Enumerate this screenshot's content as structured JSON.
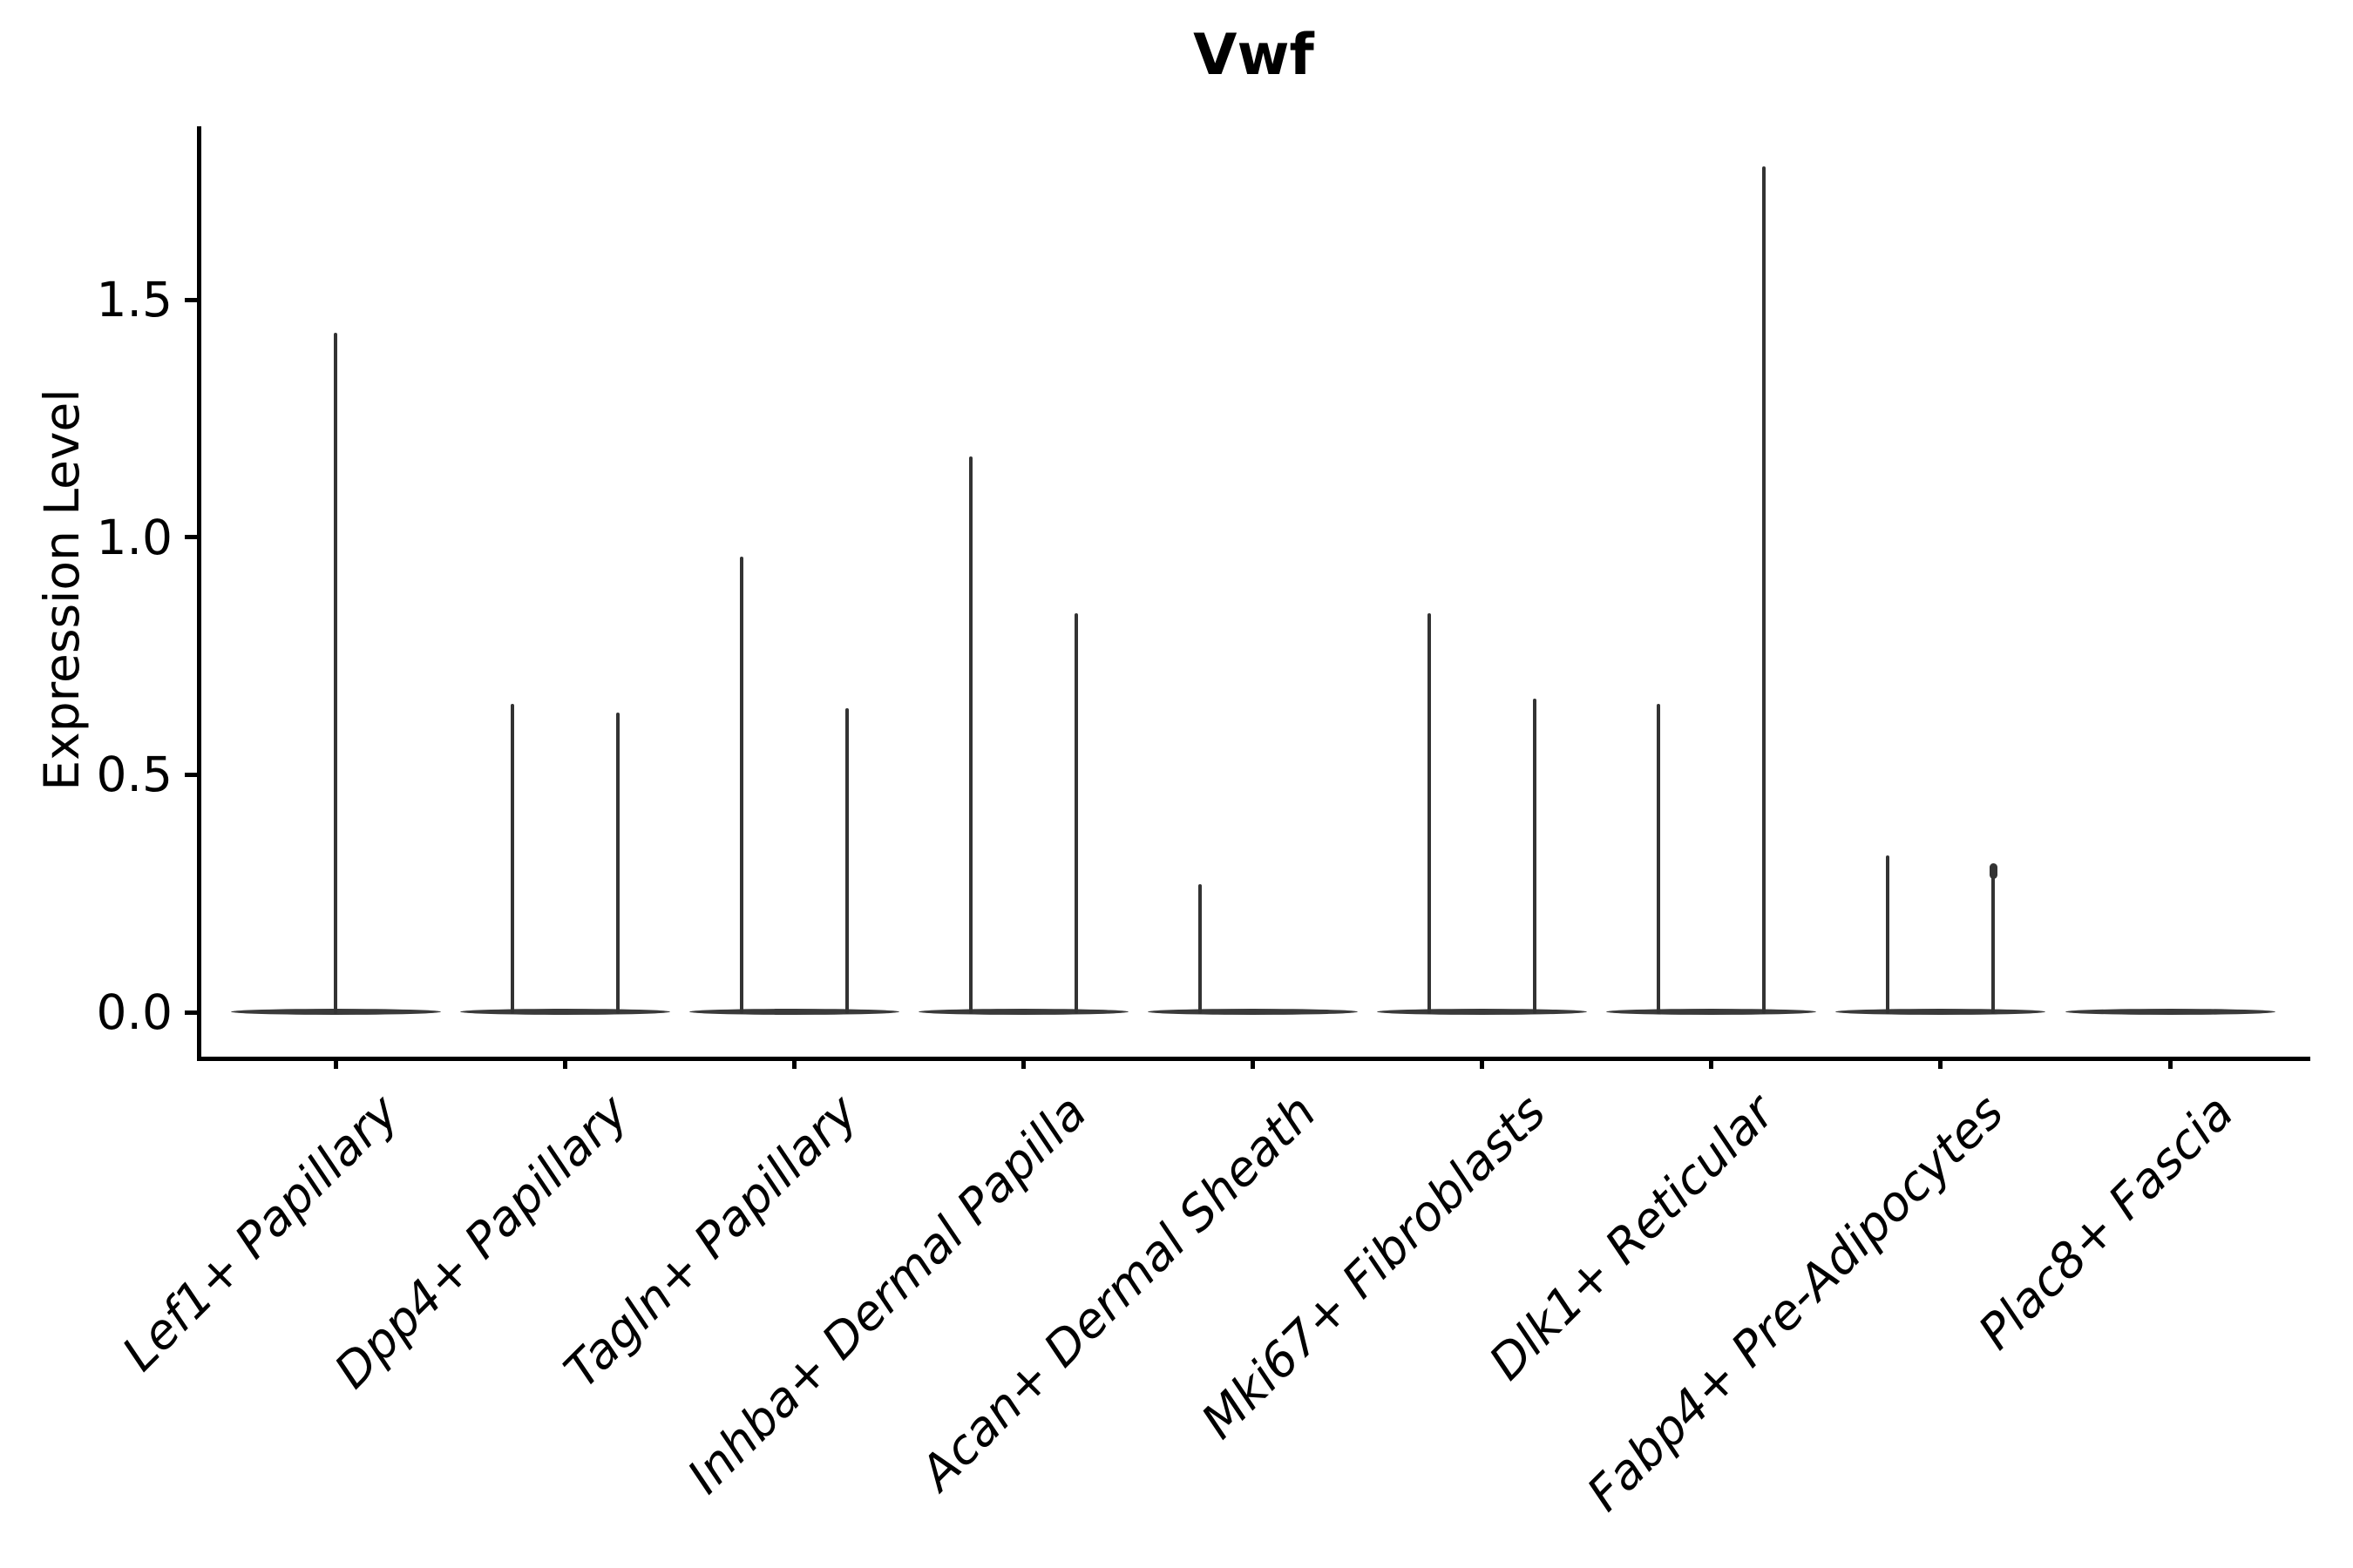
{
  "figure": {
    "title": "Vwf",
    "background": "#ffffff"
  },
  "chart_data": {
    "type": "violin",
    "title": "Vwf",
    "xlabel": "",
    "ylabel": "Expression Level",
    "grid": false,
    "legend": null,
    "ylim": [
      -0.09,
      1.87
    ],
    "ytick_labels": [
      "0.0",
      "0.5",
      "1.0",
      "1.5"
    ],
    "ytick_values": [
      0.0,
      0.5,
      1.0,
      1.5
    ],
    "categories": [
      "Lef1+ Papillary",
      "Dpp4+ Papillary",
      "Tagln+ Papillary",
      "Inhba+ Dermal Papilla",
      "Acan+ Dermal Sheath",
      "Mki67+ Fibroblasts",
      "Dlk1+ Reticular",
      "Fabp4+ Pre-Adipocytes",
      "Plac8+ Fascia"
    ],
    "violins": [
      {
        "category": "Lef1+ Papillary",
        "base_extent_frac": 0.92,
        "spikes": [
          {
            "offset_frac": 0.0,
            "max": 1.43
          }
        ]
      },
      {
        "category": "Dpp4+ Papillary",
        "base_extent_frac": 0.92,
        "spikes": [
          {
            "offset_frac": -0.23,
            "max": 0.65
          },
          {
            "offset_frac": 0.23,
            "max": 0.63
          }
        ]
      },
      {
        "category": "Tagln+ Papillary",
        "base_extent_frac": 0.92,
        "spikes": [
          {
            "offset_frac": -0.23,
            "max": 0.96
          },
          {
            "offset_frac": 0.23,
            "max": 0.64
          }
        ]
      },
      {
        "category": "Inhba+ Dermal Papilla",
        "base_extent_frac": 0.92,
        "spikes": [
          {
            "offset_frac": -0.23,
            "max": 1.17
          },
          {
            "offset_frac": 0.23,
            "max": 0.84
          }
        ]
      },
      {
        "category": "Acan+ Dermal Sheath",
        "base_extent_frac": 0.92,
        "spikes": [
          {
            "offset_frac": -0.23,
            "max": 0.27
          }
        ]
      },
      {
        "category": "Mki67+ Fibroblasts",
        "base_extent_frac": 0.92,
        "spikes": [
          {
            "offset_frac": -0.23,
            "max": 0.84
          },
          {
            "offset_frac": 0.23,
            "max": 0.66
          }
        ]
      },
      {
        "category": "Dlk1+ Reticular",
        "base_extent_frac": 0.92,
        "spikes": [
          {
            "offset_frac": -0.23,
            "max": 0.65
          },
          {
            "offset_frac": 0.23,
            "max": 1.78
          }
        ]
      },
      {
        "category": "Fabp4+ Pre-Adipocytes",
        "base_extent_frac": 0.92,
        "spikes": [
          {
            "offset_frac": -0.23,
            "max": 0.33
          },
          {
            "offset_frac": 0.23,
            "max": 0.31,
            "tip_dot": true
          }
        ]
      },
      {
        "category": "Plac8+ Fascia",
        "base_extent_frac": 0.92,
        "spikes": []
      }
    ],
    "colors": {
      "violin": "#333333",
      "violin_base": "#3a3a3a",
      "axis": "#000000",
      "text": "#000000",
      "background": "#ffffff"
    }
  }
}
